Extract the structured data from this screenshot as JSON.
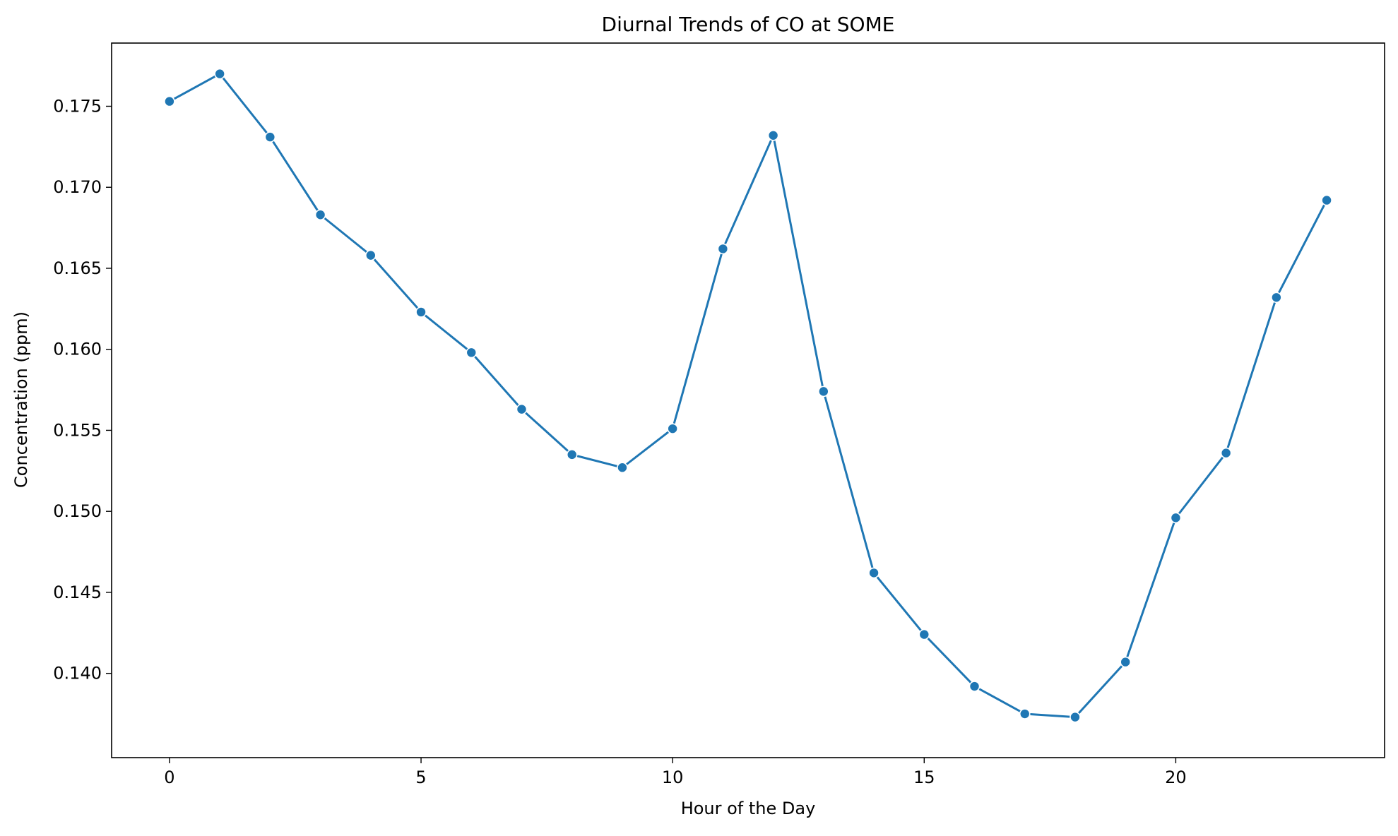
{
  "chart_data": {
    "type": "line",
    "title": "Diurnal Trends of CO at SOME",
    "xlabel": "Hour of the Day",
    "ylabel": "Concentration (ppm)",
    "xlim": [
      -1.15,
      24.15
    ],
    "ylim": [
      0.1348,
      0.1789
    ],
    "xticks": [
      0,
      5,
      10,
      15,
      20
    ],
    "yticks": [
      0.14,
      0.145,
      0.15,
      0.155,
      0.16,
      0.165,
      0.17,
      0.175
    ],
    "grid": false,
    "legend": "none",
    "series": [
      {
        "color": "#1f77b4",
        "x": [
          0,
          1,
          2,
          3,
          4,
          5,
          6,
          7,
          8,
          9,
          10,
          11,
          12,
          13,
          14,
          15,
          16,
          17,
          18,
          19,
          20,
          21,
          22,
          23
        ],
        "values": [
          0.1753,
          0.177,
          0.1731,
          0.1683,
          0.1658,
          0.1623,
          0.1598,
          0.1563,
          0.1535,
          0.1527,
          0.1551,
          0.1662,
          0.1732,
          0.1574,
          0.1462,
          0.1424,
          0.1392,
          0.1375,
          0.1373,
          0.1407,
          0.1496,
          0.1536,
          0.1632,
          0.1692
        ]
      }
    ]
  }
}
